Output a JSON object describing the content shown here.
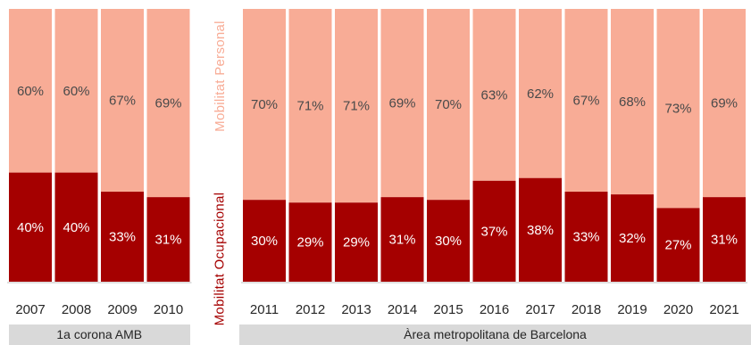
{
  "colors": {
    "personal": "#f8ac96",
    "ocupacional": "#a50000",
    "label_dark": "#4a4a4a",
    "label_light": "#ffffff"
  },
  "legend": {
    "personal": "Mobilitat Personal",
    "ocupacional": "Mobilitat Ocupacional"
  },
  "groups": [
    {
      "label": "1a corona  AMB"
    },
    {
      "label": "Àrea metropolitana de Barcelona"
    }
  ],
  "chart_data": {
    "type": "bar",
    "stacked": true,
    "percent": true,
    "categories": [
      "2007",
      "2008",
      "2009",
      "2010",
      "2011",
      "2012",
      "2013",
      "2014",
      "2015",
      "2016",
      "2017",
      "2018",
      "2019",
      "2020",
      "2021"
    ],
    "group_of_category": [
      0,
      0,
      0,
      0,
      1,
      1,
      1,
      1,
      1,
      1,
      1,
      1,
      1,
      1,
      1
    ],
    "series": [
      {
        "name": "Mobilitat Ocupacional",
        "values": [
          40,
          40,
          33,
          31,
          30,
          29,
          29,
          31,
          30,
          37,
          38,
          33,
          32,
          27,
          31
        ]
      },
      {
        "name": "Mobilitat Personal",
        "values": [
          60,
          60,
          67,
          69,
          70,
          71,
          71,
          69,
          70,
          63,
          62,
          67,
          68,
          73,
          69
        ]
      }
    ],
    "data_labels": {
      "ocupacional": [
        "40%",
        "40%",
        "33%",
        "31%",
        "30%",
        "29%",
        "29%",
        "31%",
        "30%",
        "37%",
        "38%",
        "33%",
        "32%",
        "27%",
        "31%"
      ],
      "personal": [
        "60%",
        "60%",
        "67%",
        "69%",
        "70%",
        "71%",
        "71%",
        "69%",
        "70%",
        "63%",
        "62%",
        "67%",
        "68%",
        "73%",
        "69%"
      ]
    },
    "ylim": [
      0,
      100
    ],
    "grid": false,
    "legend_placement": "vertical-text-between-groups"
  }
}
